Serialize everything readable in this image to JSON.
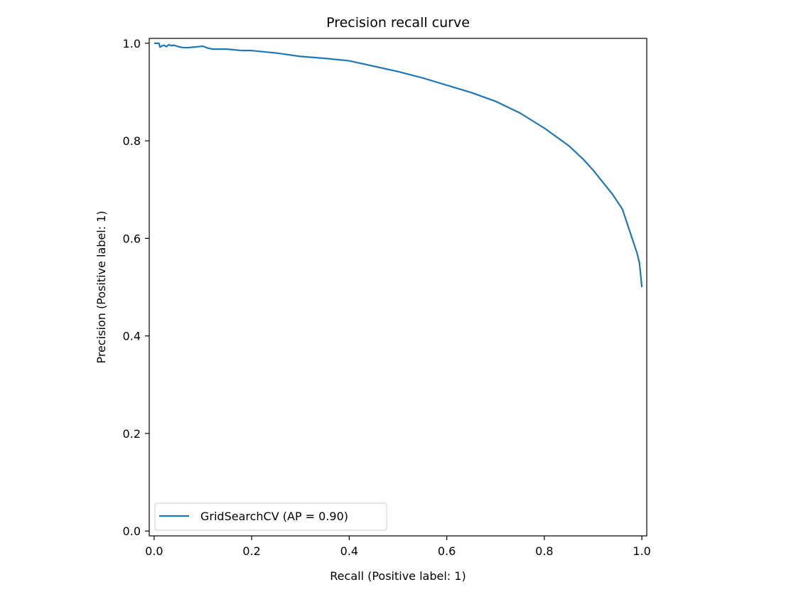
{
  "chart_data": {
    "type": "line",
    "title": "Precision recall curve",
    "xlabel": "Recall (Positive label: 1)",
    "ylabel": "Precision (Positive label: 1)",
    "xlim": [
      -0.01,
      1.01
    ],
    "ylim": [
      -0.01,
      1.01
    ],
    "xticks": [
      0.0,
      0.2,
      0.4,
      0.6,
      0.8,
      1.0
    ],
    "xtick_labels": [
      "0.0",
      "0.2",
      "0.4",
      "0.6",
      "0.8",
      "1.0"
    ],
    "yticks": [
      0.0,
      0.2,
      0.4,
      0.6,
      0.8,
      1.0
    ],
    "ytick_labels": [
      "0.0",
      "0.2",
      "0.4",
      "0.6",
      "0.8",
      "1.0"
    ],
    "grid": false,
    "legend_position": "lower-left",
    "series": [
      {
        "name": "GridSearchCV (AP = 0.90)",
        "color": "#1f77b4",
        "x": [
          0.0,
          0.01,
          0.012,
          0.015,
          0.02,
          0.025,
          0.03,
          0.035,
          0.04,
          0.05,
          0.06,
          0.07,
          0.08,
          0.09,
          0.1,
          0.11,
          0.12,
          0.15,
          0.18,
          0.2,
          0.25,
          0.3,
          0.35,
          0.4,
          0.45,
          0.5,
          0.55,
          0.6,
          0.65,
          0.7,
          0.75,
          0.8,
          0.85,
          0.88,
          0.9,
          0.92,
          0.94,
          0.96,
          0.97,
          0.98,
          0.99,
          0.995,
          1.0
        ],
        "y": [
          1.0,
          1.0,
          0.992,
          0.994,
          0.996,
          0.993,
          0.997,
          0.995,
          0.996,
          0.993,
          0.991,
          0.991,
          0.992,
          0.993,
          0.994,
          0.99,
          0.988,
          0.988,
          0.985,
          0.985,
          0.98,
          0.973,
          0.969,
          0.964,
          0.953,
          0.942,
          0.929,
          0.914,
          0.899,
          0.881,
          0.857,
          0.826,
          0.79,
          0.762,
          0.74,
          0.715,
          0.69,
          0.66,
          0.63,
          0.6,
          0.57,
          0.55,
          0.5
        ]
      }
    ]
  }
}
